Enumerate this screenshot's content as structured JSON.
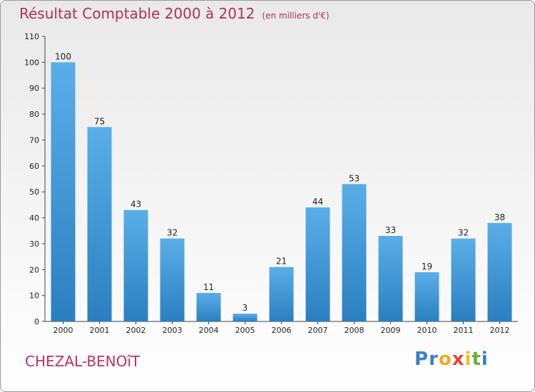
{
  "title": "Résultat Comptable 2000 à 2012",
  "subtitle": "(en milliers d'€)",
  "commune": "CHEZAL-BENOîT",
  "logo": {
    "text": "Proxiti",
    "letters": [
      {
        "char": "P",
        "color": "#3a7fd0"
      },
      {
        "char": "r",
        "color": "#3a7fd0"
      },
      {
        "char": "o",
        "color": "#f5a623"
      },
      {
        "char": "x",
        "color": "#e8452c"
      },
      {
        "char": "i",
        "color": "#f0c020"
      },
      {
        "char": "t",
        "color": "#6aae3a"
      },
      {
        "char": "i",
        "color": "#3a7fd0"
      }
    ]
  },
  "colors": {
    "bar_top": "#5aaee8",
    "bar_bottom": "#2a7fc0",
    "title": "#b0305a"
  },
  "chart_data": {
    "type": "bar",
    "categories": [
      "2000",
      "2001",
      "2002",
      "2003",
      "2004",
      "2005",
      "2006",
      "2007",
      "2008",
      "2009",
      "2010",
      "2011",
      "2012"
    ],
    "values": [
      100,
      75,
      43,
      32,
      11,
      3,
      21,
      44,
      53,
      33,
      19,
      32,
      38
    ],
    "ylim": [
      0,
      110
    ],
    "yticks": [
      0,
      10,
      20,
      30,
      40,
      50,
      60,
      70,
      80,
      90,
      100,
      110
    ],
    "xlabel": "",
    "ylabel": ""
  }
}
